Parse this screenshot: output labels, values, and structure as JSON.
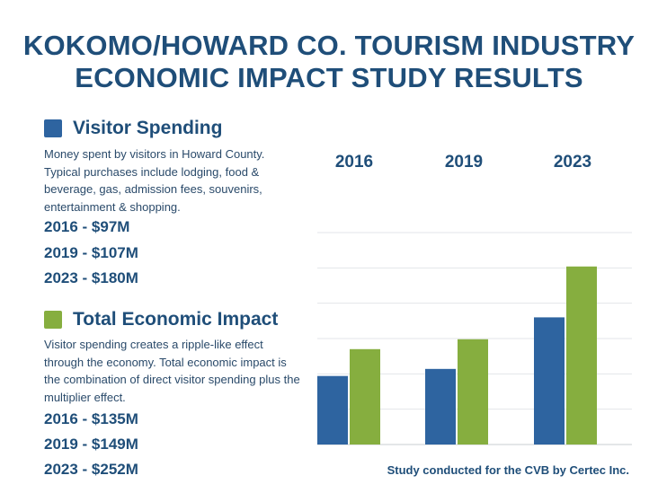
{
  "title": {
    "line1": "KOKOMO/HOWARD CO. TOURISM INDUSTRY",
    "line2": "ECONOMIC IMPACT STUDY RESULTS"
  },
  "colors": {
    "blue": "#2e64a0",
    "green": "#86ae3f",
    "navy": "#1f4e79"
  },
  "visitor_spending": {
    "heading": "Visitor Spending",
    "description": "Money spent by visitors in Howard County. Typical purchases include lodging, food & beverage, gas, admission fees, souvenirs, entertainment & shopping.",
    "stats": [
      "2016 - $97M",
      "2019 - $107M",
      "2023 - $180M"
    ]
  },
  "total_impact": {
    "heading": "Total Economic Impact",
    "description": "Visitor spending creates a ripple-like effect through the economy. Total economic impact is the combination of direct visitor spending plus the multiplier effect.",
    "stats": [
      "2016 - $135M",
      "2019 - $149M",
      "2023 - $252M"
    ]
  },
  "footnote": "Study conducted for the CVB by Certec Inc.",
  "chart_data": {
    "type": "bar",
    "categories": [
      "2016",
      "2019",
      "2023"
    ],
    "series": [
      {
        "name": "Visitor Spending",
        "values": [
          97,
          107,
          180
        ]
      },
      {
        "name": "Total Economic Impact",
        "values": [
          135,
          149,
          252
        ]
      }
    ],
    "ylim": [
      0,
      300
    ],
    "grid": true
  }
}
